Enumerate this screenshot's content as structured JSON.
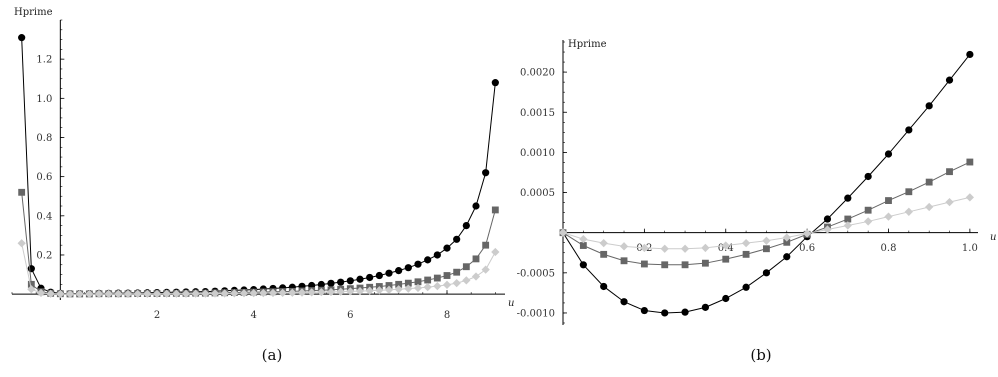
{
  "chart_data": [
    {
      "type": "line",
      "caption": "(a)",
      "ylabel": "Hprime",
      "xlabel": "u",
      "xlim": [
        -1.0,
        9.2
      ],
      "ylim": [
        -0.03,
        1.4
      ],
      "xticks": [
        2,
        4,
        6,
        8
      ],
      "xtick_labels": [
        "2",
        "4",
        "6",
        "8"
      ],
      "yticks": [
        0.2,
        0.4,
        0.6,
        0.8,
        1.0,
        1.2
      ],
      "ytick_labels": [
        "0.2",
        "0.4",
        "0.6",
        "0.8",
        "1.0",
        "1.2"
      ],
      "series": [
        {
          "marker": "circle",
          "color": "#000000",
          "line": "#000000",
          "x": [
            -0.8,
            -0.6,
            -0.4,
            -0.2,
            0.0,
            0.2,
            0.4,
            0.6,
            0.8,
            1.0,
            1.2,
            1.4,
            1.6,
            1.8,
            2.0,
            2.2,
            2.4,
            2.6,
            2.8,
            3.0,
            3.2,
            3.4,
            3.6,
            3.8,
            4.0,
            4.2,
            4.4,
            4.6,
            4.8,
            5.0,
            5.2,
            5.4,
            5.6,
            5.8,
            6.0,
            6.2,
            6.4,
            6.6,
            6.8,
            7.0,
            7.2,
            7.4,
            7.6,
            7.8,
            8.0,
            8.2,
            8.4,
            8.6,
            8.8,
            9.0
          ],
          "y": [
            1.31,
            0.13,
            0.03,
            0.01,
            0.004,
            0.003,
            0.003,
            0.003,
            0.004,
            0.004,
            0.005,
            0.005,
            0.006,
            0.007,
            0.008,
            0.009,
            0.01,
            0.011,
            0.012,
            0.013,
            0.015,
            0.017,
            0.019,
            0.021,
            0.023,
            0.026,
            0.029,
            0.032,
            0.035,
            0.04,
            0.044,
            0.049,
            0.055,
            0.061,
            0.068,
            0.076,
            0.085,
            0.095,
            0.107,
            0.12,
            0.135,
            0.153,
            0.175,
            0.2,
            0.235,
            0.28,
            0.35,
            0.45,
            0.62,
            1.08
          ]
        },
        {
          "marker": "square",
          "color": "#666666",
          "line": "#666666",
          "x": [
            -0.8,
            -0.6,
            -0.4,
            -0.2,
            0.0,
            0.2,
            0.4,
            0.6,
            0.8,
            1.0,
            1.2,
            1.4,
            1.6,
            1.8,
            2.0,
            2.2,
            2.4,
            2.6,
            2.8,
            3.0,
            3.2,
            3.4,
            3.6,
            3.8,
            4.0,
            4.2,
            4.4,
            4.6,
            4.8,
            5.0,
            5.2,
            5.4,
            5.6,
            5.8,
            6.0,
            6.2,
            6.4,
            6.6,
            6.8,
            7.0,
            7.2,
            7.4,
            7.6,
            7.8,
            8.0,
            8.2,
            8.4,
            8.6,
            8.8,
            9.0
          ],
          "y": [
            0.52,
            0.05,
            0.012,
            0.004,
            0.002,
            0.001,
            0.001,
            0.001,
            0.002,
            0.002,
            0.002,
            0.002,
            0.003,
            0.003,
            0.003,
            0.004,
            0.004,
            0.004,
            0.005,
            0.005,
            0.006,
            0.007,
            0.008,
            0.009,
            0.01,
            0.011,
            0.012,
            0.013,
            0.014,
            0.016,
            0.018,
            0.02,
            0.022,
            0.025,
            0.028,
            0.031,
            0.035,
            0.039,
            0.044,
            0.05,
            0.056,
            0.063,
            0.072,
            0.082,
            0.095,
            0.112,
            0.14,
            0.18,
            0.25,
            0.43
          ]
        },
        {
          "marker": "diamond",
          "color": "#cccccc",
          "line": "#cccccc",
          "x": [
            -0.8,
            -0.6,
            -0.4,
            -0.2,
            0.0,
            0.2,
            0.4,
            0.6,
            0.8,
            1.0,
            1.2,
            1.4,
            1.6,
            1.8,
            2.0,
            2.2,
            2.4,
            2.6,
            2.8,
            3.0,
            3.2,
            3.4,
            3.6,
            3.8,
            4.0,
            4.2,
            4.4,
            4.6,
            4.8,
            5.0,
            5.2,
            5.4,
            5.6,
            5.8,
            6.0,
            6.2,
            6.4,
            6.6,
            6.8,
            7.0,
            7.2,
            7.4,
            7.6,
            7.8,
            8.0,
            8.2,
            8.4,
            8.6,
            8.8,
            9.0
          ],
          "y": [
            0.26,
            0.025,
            0.006,
            0.002,
            0.001,
            0.0005,
            0.0005,
            0.0005,
            0.001,
            0.001,
            0.001,
            0.001,
            0.0015,
            0.0015,
            0.0015,
            0.002,
            0.002,
            0.002,
            0.0025,
            0.0025,
            0.003,
            0.0035,
            0.004,
            0.0045,
            0.005,
            0.0055,
            0.006,
            0.0065,
            0.007,
            0.008,
            0.009,
            0.01,
            0.011,
            0.0125,
            0.014,
            0.0155,
            0.0175,
            0.0195,
            0.022,
            0.025,
            0.028,
            0.0315,
            0.036,
            0.041,
            0.0475,
            0.056,
            0.07,
            0.09,
            0.125,
            0.215
          ]
        }
      ]
    },
    {
      "type": "line",
      "caption": "(b)",
      "ylabel": "Hprime",
      "xlabel": "u",
      "xlim": [
        0.0,
        1.02
      ],
      "ylim": [
        -0.00115,
        0.0024
      ],
      "xticks": [
        0.2,
        0.4,
        0.6,
        0.8,
        1.0
      ],
      "xtick_labels": [
        "0.2",
        "0.4",
        "0.6",
        "0.8",
        "1.0"
      ],
      "yticks": [
        -0.001,
        -0.0005,
        0.0005,
        0.001,
        0.0015,
        0.002
      ],
      "ytick_labels": [
        "-0.0010",
        "-0.0005",
        "0.0005",
        "0.0010",
        "0.0015",
        "0.0020"
      ],
      "series": [
        {
          "marker": "circle",
          "color": "#000000",
          "line": "#000000",
          "x": [
            0.0,
            0.05,
            0.1,
            0.15,
            0.2,
            0.25,
            0.3,
            0.35,
            0.4,
            0.45,
            0.5,
            0.55,
            0.6,
            0.65,
            0.7,
            0.75,
            0.8,
            0.85,
            0.9,
            0.95,
            1.0
          ],
          "y": [
            0.0,
            -0.0004,
            -0.00067,
            -0.00086,
            -0.00097,
            -0.001,
            -0.00099,
            -0.00093,
            -0.00082,
            -0.00068,
            -0.0005,
            -0.0003,
            -5e-05,
            0.00017,
            0.00043,
            0.0007,
            0.00098,
            0.00128,
            0.00158,
            0.0019,
            0.00222
          ]
        },
        {
          "marker": "square",
          "color": "#666666",
          "line": "#666666",
          "x": [
            0.0,
            0.05,
            0.1,
            0.15,
            0.2,
            0.25,
            0.3,
            0.35,
            0.4,
            0.45,
            0.5,
            0.55,
            0.6,
            0.65,
            0.7,
            0.75,
            0.8,
            0.85,
            0.9,
            0.95,
            1.0
          ],
          "y": [
            0.0,
            -0.00016,
            -0.00027,
            -0.00035,
            -0.00039,
            -0.0004,
            -0.0004,
            -0.00038,
            -0.00033,
            -0.00027,
            -0.0002,
            -0.00012,
            -2e-05,
            7e-05,
            0.00017,
            0.00028,
            0.0004,
            0.00051,
            0.00063,
            0.00076,
            0.00088
          ]
        },
        {
          "marker": "diamond",
          "color": "#cccccc",
          "line": "#cccccc",
          "x": [
            0.0,
            0.05,
            0.1,
            0.15,
            0.2,
            0.25,
            0.3,
            0.35,
            0.4,
            0.45,
            0.5,
            0.55,
            0.6,
            0.65,
            0.7,
            0.75,
            0.8,
            0.85,
            0.9,
            0.95,
            1.0
          ],
          "y": [
            0.0,
            -8e-05,
            -0.00013,
            -0.00017,
            -0.00019,
            -0.0002,
            -0.0002,
            -0.00019,
            -0.00016,
            -0.00013,
            -0.0001,
            -6e-05,
            -1e-05,
            4e-05,
            9e-05,
            0.00014,
            0.0002,
            0.00026,
            0.00032,
            0.00038,
            0.00044
          ]
        }
      ]
    }
  ]
}
